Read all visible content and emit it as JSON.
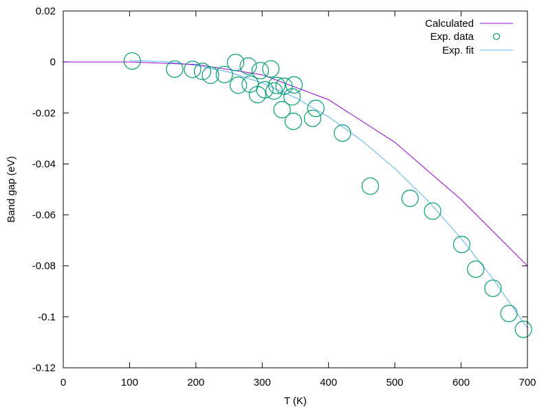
{
  "chart_data": {
    "type": "line",
    "xlabel": "T (K)",
    "ylabel": "Band gap (eV)",
    "xlim": [
      0,
      700
    ],
    "ylim": [
      -0.12,
      0.02
    ],
    "x_ticks": [
      0,
      100,
      200,
      300,
      400,
      500,
      600,
      700
    ],
    "y_ticks": [
      0.02,
      0,
      -0.02,
      -0.04,
      -0.06,
      -0.08,
      -0.1,
      -0.12
    ],
    "x_tick_labels": [
      "0",
      "100",
      "200",
      "300",
      "400",
      "500",
      "600",
      "700"
    ],
    "y_tick_labels": [
      "0.02",
      "0",
      "-0.02",
      "-0.04",
      "-0.06",
      "-0.08",
      "-0.1",
      "-0.12"
    ],
    "grid": false,
    "legend_position": "top-right",
    "colors": {
      "calculated": "#9400d3",
      "exp_data": "#009e73",
      "exp_fit": "#56b4e9"
    },
    "series": [
      {
        "name": "Calculated",
        "kind": "line",
        "points": [
          [
            0,
            0
          ],
          [
            100,
            0
          ],
          [
            200,
            -0.001
          ],
          [
            300,
            -0.005
          ],
          [
            400,
            -0.0148
          ],
          [
            500,
            -0.0315
          ],
          [
            600,
            -0.054
          ],
          [
            700,
            -0.08
          ]
        ]
      },
      {
        "name": "Exp. data",
        "kind": "scatter",
        "points": [
          [
            104,
            0.0004
          ],
          [
            168,
            -0.0028
          ],
          [
            195,
            -0.0029
          ],
          [
            210,
            -0.0037
          ],
          [
            222,
            -0.0052
          ],
          [
            243,
            -0.0049
          ],
          [
            260,
            -0.0002
          ],
          [
            264,
            -0.0091
          ],
          [
            279,
            -0.0016
          ],
          [
            282,
            -0.0087
          ],
          [
            293,
            -0.0128
          ],
          [
            297,
            -0.0034
          ],
          [
            304,
            -0.0109
          ],
          [
            313,
            -0.0027
          ],
          [
            318,
            -0.0114
          ],
          [
            322,
            -0.0092
          ],
          [
            330,
            -0.0187
          ],
          [
            333,
            -0.0095
          ],
          [
            345,
            -0.0137
          ],
          [
            347,
            -0.0233
          ],
          [
            348,
            -0.009
          ],
          [
            376,
            -0.0221
          ],
          [
            381,
            -0.0182
          ],
          [
            421,
            -0.0279
          ],
          [
            463,
            -0.0487
          ],
          [
            523,
            -0.0535
          ],
          [
            557,
            -0.0585
          ],
          [
            601,
            -0.0716
          ],
          [
            622,
            -0.0813
          ],
          [
            648,
            -0.0888
          ],
          [
            672,
            -0.0987
          ],
          [
            694,
            -0.1049
          ]
        ]
      },
      {
        "name": "Exp. fit",
        "kind": "line",
        "points": [
          [
            100,
            0.0005
          ],
          [
            150,
            0.0002
          ],
          [
            200,
            -0.0013
          ],
          [
            250,
            -0.004
          ],
          [
            300,
            -0.0082
          ],
          [
            350,
            -0.014
          ],
          [
            400,
            -0.0215
          ],
          [
            450,
            -0.0308
          ],
          [
            500,
            -0.0418
          ],
          [
            550,
            -0.0545
          ],
          [
            600,
            -0.0692
          ],
          [
            650,
            -0.0858
          ],
          [
            700,
            -0.1045
          ]
        ]
      }
    ]
  }
}
